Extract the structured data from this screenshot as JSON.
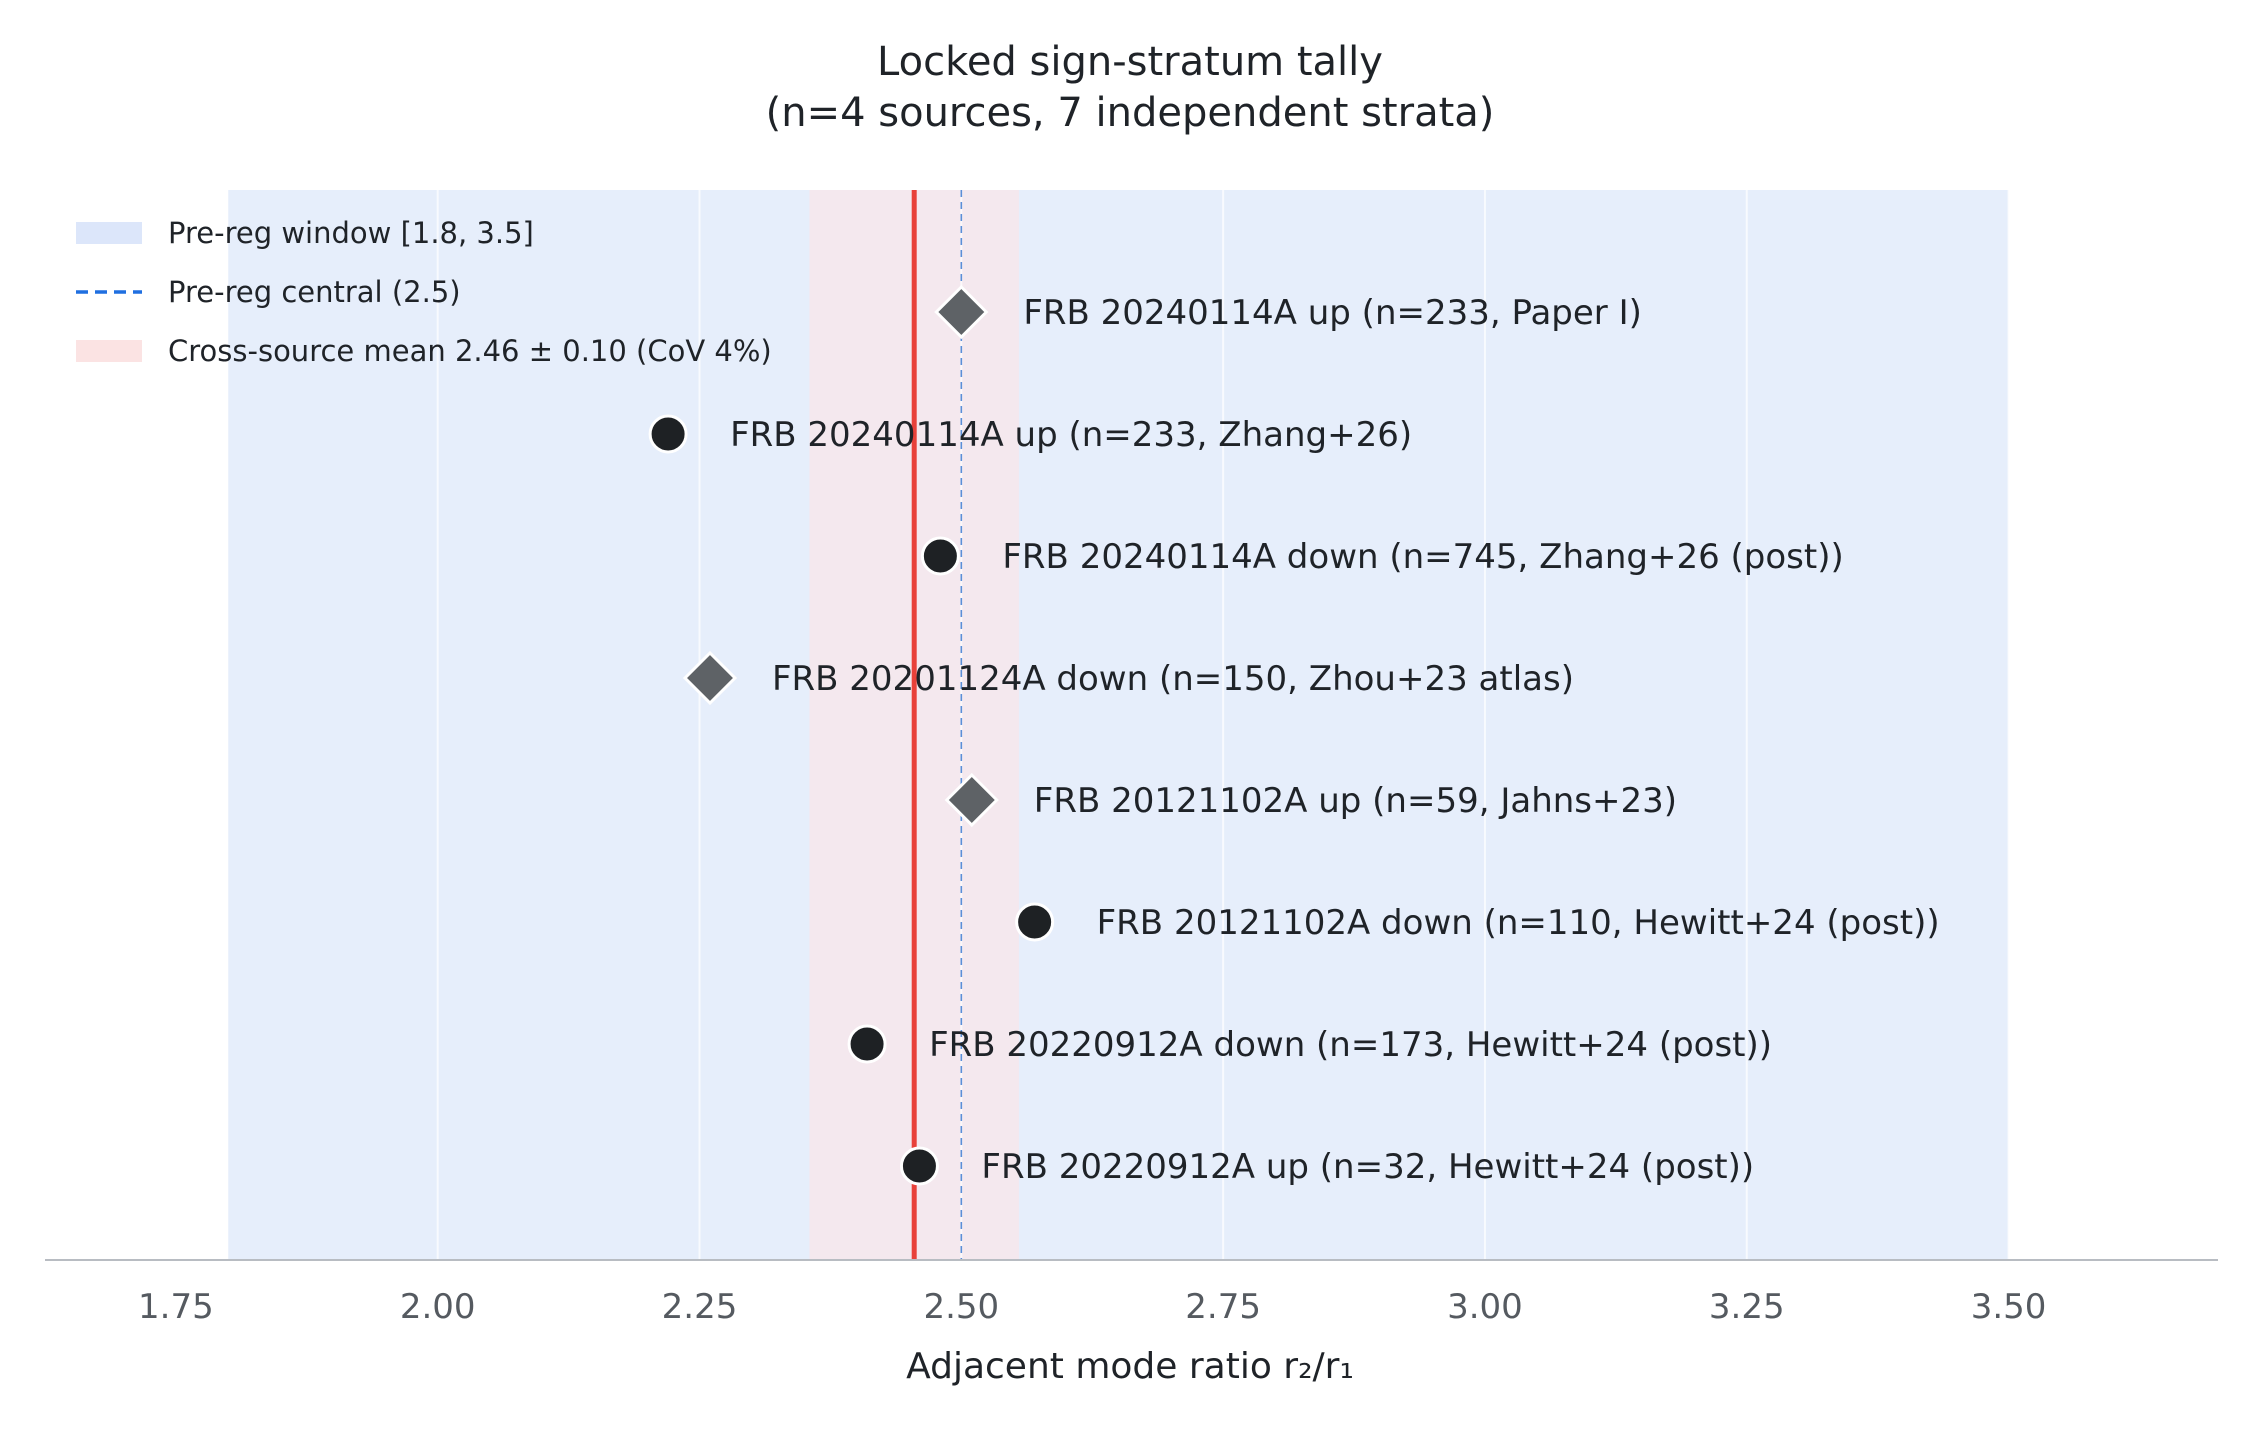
{
  "chart_data": {
    "type": "scatter",
    "title_line1": "Locked sign-stratum tally",
    "title_line2": "(n=4 sources, 7 independent strata)",
    "xlabel": "Adjacent mode ratio r₂/r₁",
    "ylabel": "",
    "xlim": [
      1.625,
      3.7
    ],
    "xticks": [
      "1.75",
      "2.00",
      "2.25",
      "2.50",
      "2.75",
      "3.00",
      "3.25",
      "3.50"
    ],
    "xtick_values": [
      1.75,
      2.0,
      2.25,
      2.5,
      2.75,
      3.0,
      3.25,
      3.5
    ],
    "grid": "x only",
    "legend_position": "top-left",
    "legend": [
      {
        "label": "Pre-reg window [1.8, 3.5]",
        "kind": "band",
        "color": "#dce6fa"
      },
      {
        "label": "Pre-reg central (2.5)",
        "kind": "dashed-line",
        "color": "#1f6fe0"
      },
      {
        "label": "Cross-source mean 2.46 ± 0.10 (CoV 4%)",
        "kind": "band",
        "color": "#fbe3e3"
      }
    ],
    "prereg_window": [
      1.8,
      3.5
    ],
    "prereg_central": 2.5,
    "mean": 2.455,
    "mean_band": [
      2.355,
      2.555
    ],
    "colors": {
      "window_band": "#e6eefb",
      "mean_band": "#f4e8ee",
      "mean_line": "#e8413a",
      "central_line": "#5b8fd8",
      "circle_marker": "#1e2124",
      "diamond_marker": "#5e6266",
      "axis": "#b8bcc2",
      "grid": "#f0f2f5"
    },
    "points": [
      {
        "label": "FRB 20240114A up (n=233, Paper I)",
        "x": 2.5,
        "marker": "diamond"
      },
      {
        "label": "FRB 20240114A up (n=233, Zhang+26)",
        "x": 2.22,
        "marker": "circle"
      },
      {
        "label": "FRB 20240114A down (n=745, Zhang+26 (post))",
        "x": 2.48,
        "marker": "circle"
      },
      {
        "label": "FRB 20201124A down (n=150, Zhou+23 atlas)",
        "x": 2.26,
        "marker": "diamond"
      },
      {
        "label": "FRB 20121102A up (n=59, Jahns+23)",
        "x": 2.51,
        "marker": "diamond"
      },
      {
        "label": "FRB 20121102A down (n=110, Hewitt+24 (post))",
        "x": 2.57,
        "marker": "circle"
      },
      {
        "label": "FRB 20220912A down (n=173, Hewitt+24 (post))",
        "x": 2.41,
        "marker": "circle"
      },
      {
        "label": "FRB 20220912A up (n=32, Hewitt+24 (post))",
        "x": 2.46,
        "marker": "circle"
      }
    ]
  }
}
